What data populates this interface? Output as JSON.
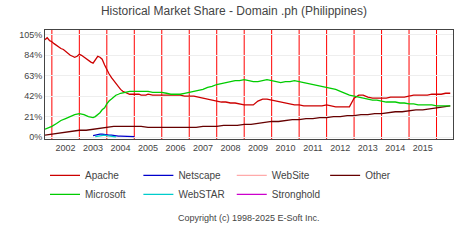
{
  "chart_data": {
    "type": "line",
    "title": "Historical Market Share - Domain .ph (Philippines)",
    "annotations": [
      "Copyright (c) 1998-2025 E-Soft Inc."
    ],
    "xlim": [
      2001.25,
      2016.1
    ],
    "xticks": [
      2002,
      2003,
      2004,
      2005,
      2006,
      2007,
      2008,
      2009,
      2010,
      2011,
      2012,
      2013,
      2014,
      2015
    ],
    "ylim": [
      -2,
      110
    ],
    "yticks": [
      {
        "value": 0,
        "label": "0%"
      },
      {
        "value": 21,
        "label": "21%"
      },
      {
        "value": 42,
        "label": "42%"
      },
      {
        "value": 63,
        "label": "63%"
      },
      {
        "value": 84,
        "label": "84%"
      },
      {
        "value": 105,
        "label": "105%"
      }
    ],
    "grid": "y",
    "vlines": {
      "values": [
        2001.5,
        2002.5,
        2003.5,
        2004.5,
        2005.5,
        2006.5,
        2007.5,
        2008.5,
        2009.5,
        2010.5,
        2011.5,
        2012.5,
        2013.5,
        2014.5,
        2015.5
      ],
      "color": "#ff0000"
    },
    "series": [
      {
        "name": "Apache",
        "color": "#cc0000",
        "x": [
          2001.25,
          2001.33,
          2001.42,
          2001.5,
          2001.58,
          2001.67,
          2001.75,
          2001.83,
          2001.92,
          2002.0,
          2002.08,
          2002.17,
          2002.25,
          2002.33,
          2002.42,
          2002.5,
          2002.58,
          2002.67,
          2002.75,
          2002.83,
          2002.92,
          2003.0,
          2003.08,
          2003.17,
          2003.25,
          2003.33,
          2003.42,
          2003.5,
          2003.58,
          2003.67,
          2003.75,
          2003.83,
          2003.92,
          2004.0,
          2004.08,
          2004.17,
          2004.25,
          2004.33,
          2004.42,
          2004.5,
          2004.58,
          2004.67,
          2004.75,
          2004.83,
          2004.92,
          2005.0,
          2005.17,
          2005.33,
          2005.5,
          2005.67,
          2005.83,
          2006.0,
          2006.17,
          2006.33,
          2006.5,
          2006.67,
          2006.83,
          2007.0,
          2007.17,
          2007.33,
          2007.5,
          2007.67,
          2007.83,
          2008.0,
          2008.17,
          2008.33,
          2008.5,
          2008.67,
          2008.83,
          2009.0,
          2009.17,
          2009.33,
          2009.5,
          2009.67,
          2009.83,
          2010.0,
          2010.17,
          2010.33,
          2010.5,
          2010.67,
          2010.83,
          2011.0,
          2011.17,
          2011.33,
          2011.5,
          2011.67,
          2011.83,
          2012.0,
          2012.17,
          2012.33,
          2012.5,
          2012.67,
          2012.83,
          2013.0,
          2013.17,
          2013.33,
          2013.5,
          2013.67,
          2013.83,
          2014.0,
          2014.17,
          2014.33,
          2014.5,
          2014.67,
          2014.83,
          2015.0,
          2015.17,
          2015.33,
          2015.5,
          2015.67,
          2015.83,
          2016.0
        ],
        "values": [
          100,
          102,
          99,
          98,
          96,
          94,
          93,
          91,
          90,
          88,
          86,
          84,
          83,
          82,
          83,
          85,
          84,
          82,
          80,
          79,
          77,
          76,
          79,
          83,
          82,
          80,
          74,
          69,
          65,
          61,
          58,
          55,
          52,
          49,
          47,
          46,
          45,
          44,
          44,
          44,
          44,
          44,
          43,
          43,
          43,
          44,
          43,
          43,
          43,
          43,
          43,
          43,
          43,
          42,
          42,
          42,
          41,
          40,
          39,
          38,
          37,
          36,
          36,
          35,
          35,
          34,
          33,
          33,
          33,
          37,
          39,
          39,
          38,
          37,
          36,
          35,
          34,
          33,
          33,
          32,
          32,
          32,
          32,
          32,
          33,
          32,
          31,
          31,
          31,
          31,
          40,
          43,
          43,
          41,
          40,
          40,
          40,
          40,
          41,
          41,
          41,
          41,
          42,
          43,
          43,
          43,
          43,
          44,
          44,
          44,
          45,
          45
        ]
      },
      {
        "name": "Netscape",
        "color": "#0000cc",
        "x": [
          2003.0,
          2003.08,
          2003.17,
          2003.25,
          2003.33,
          2003.42,
          2003.5,
          2003.58,
          2003.67,
          2003.75,
          2003.83,
          2003.92,
          2004.0,
          2004.08,
          2004.17,
          2004.25,
          2004.33,
          2004.42,
          2004.5
        ],
        "values": [
          1.5,
          2,
          3,
          3,
          3,
          2.5,
          2,
          2,
          2,
          1.5,
          1,
          1,
          1,
          1,
          1,
          1,
          0.8,
          0.5,
          0.5
        ]
      },
      {
        "name": "WebSite",
        "color": "#ffaaaa",
        "x": [],
        "values": []
      },
      {
        "name": "Other",
        "color": "#660000",
        "x": [
          2001.25,
          2001.5,
          2001.75,
          2002.0,
          2002.25,
          2002.5,
          2002.75,
          2003.0,
          2003.25,
          2003.5,
          2003.75,
          2004.0,
          2004.25,
          2004.5,
          2004.75,
          2005.0,
          2005.25,
          2005.5,
          2005.75,
          2006.0,
          2006.25,
          2006.5,
          2006.75,
          2007.0,
          2007.25,
          2007.5,
          2007.75,
          2008.0,
          2008.25,
          2008.5,
          2008.75,
          2009.0,
          2009.25,
          2009.5,
          2009.75,
          2010.0,
          2010.25,
          2010.5,
          2010.75,
          2011.0,
          2011.25,
          2011.5,
          2011.75,
          2012.0,
          2012.25,
          2012.5,
          2012.75,
          2013.0,
          2013.25,
          2013.5,
          2013.75,
          2014.0,
          2014.25,
          2014.5,
          2014.75,
          2015.0,
          2015.25,
          2015.5,
          2015.75,
          2016.0
        ],
        "values": [
          2,
          3,
          4,
          5,
          6,
          7,
          7,
          8,
          9,
          10,
          11,
          11,
          11,
          11,
          11,
          10,
          10,
          10,
          10,
          10,
          10,
          10,
          10,
          11,
          11,
          11,
          12,
          12,
          12,
          13,
          13,
          14,
          15,
          16,
          16,
          17,
          18,
          18,
          19,
          19,
          20,
          20,
          21,
          21,
          22,
          22,
          23,
          23,
          24,
          24,
          25,
          26,
          26,
          27,
          28,
          28,
          29,
          30,
          31,
          32
        ]
      },
      {
        "name": "Microsoft",
        "color": "#00cc00",
        "x": [
          2001.25,
          2001.33,
          2001.5,
          2001.67,
          2001.83,
          2002.0,
          2002.17,
          2002.33,
          2002.5,
          2002.67,
          2002.83,
          2003.0,
          2003.08,
          2003.17,
          2003.25,
          2003.33,
          2003.42,
          2003.5,
          2003.58,
          2003.67,
          2003.75,
          2003.83,
          2003.92,
          2004.0,
          2004.17,
          2004.33,
          2004.5,
          2004.67,
          2004.83,
          2005.0,
          2005.17,
          2005.33,
          2005.5,
          2005.67,
          2005.83,
          2006.0,
          2006.17,
          2006.33,
          2006.5,
          2006.67,
          2006.83,
          2007.0,
          2007.17,
          2007.33,
          2007.5,
          2007.67,
          2007.83,
          2008.0,
          2008.17,
          2008.33,
          2008.5,
          2008.67,
          2008.83,
          2009.0,
          2009.17,
          2009.33,
          2009.5,
          2009.67,
          2009.83,
          2010.0,
          2010.17,
          2010.33,
          2010.5,
          2010.67,
          2010.83,
          2011.0,
          2011.17,
          2011.33,
          2011.5,
          2011.67,
          2011.83,
          2012.0,
          2012.17,
          2012.33,
          2012.5,
          2012.67,
          2012.83,
          2013.0,
          2013.17,
          2013.33,
          2013.5,
          2013.67,
          2013.83,
          2014.0,
          2014.17,
          2014.33,
          2014.5,
          2014.67,
          2014.83,
          2015.0,
          2015.17,
          2015.33,
          2015.5,
          2015.67,
          2015.83,
          2016.0
        ],
        "values": [
          8,
          9,
          11,
          14,
          17,
          19,
          21,
          23,
          24,
          23,
          21,
          20,
          21,
          23,
          25,
          28,
          30,
          34,
          37,
          39,
          41,
          43,
          44,
          45,
          46,
          47,
          47,
          47,
          47,
          47,
          46,
          46,
          46,
          45,
          44,
          44,
          44,
          45,
          46,
          47,
          48,
          49,
          51,
          52,
          54,
          55,
          56,
          57,
          58,
          58,
          59,
          58,
          57,
          57,
          58,
          59,
          58,
          57,
          56,
          57,
          57,
          58,
          57,
          56,
          55,
          54,
          53,
          52,
          51,
          50,
          49,
          47,
          45,
          43,
          42,
          41,
          40,
          39,
          38,
          38,
          37,
          36,
          36,
          36,
          35,
          35,
          34,
          34,
          33,
          33,
          33,
          33,
          32,
          32,
          32,
          32
        ]
      },
      {
        "name": "WebSTAR",
        "color": "#00cccc",
        "x": [
          2003.08,
          2003.17,
          2003.25,
          2003.33,
          2003.42,
          2003.5,
          2003.58,
          2003.67,
          2003.75,
          2003.83
        ],
        "values": [
          0.5,
          1,
          1.5,
          2,
          2,
          1.5,
          1,
          0.5,
          0.5,
          0.3
        ]
      },
      {
        "name": "Stronghold",
        "color": "#cc00cc",
        "x": [],
        "values": []
      }
    ]
  }
}
